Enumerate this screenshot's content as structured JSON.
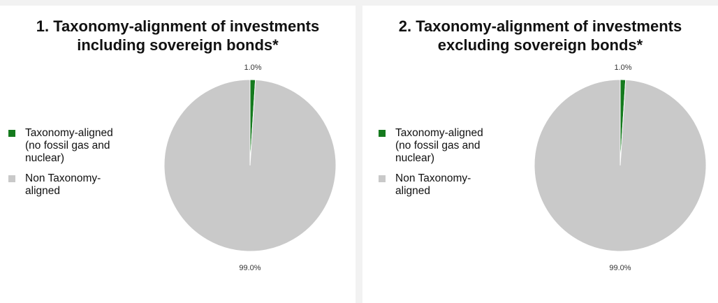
{
  "colors": {
    "aligned": "#157a1e",
    "non_aligned": "#c9c9c9"
  },
  "chart_data": [
    {
      "type": "pie",
      "title_lines": [
        "1. Taxonomy-alignment of investments",
        "including sovereign bonds*"
      ],
      "legend_position": "left",
      "slices": [
        {
          "label": "Taxonomy-aligned (no fossil gas and nuclear)",
          "legend_lines": [
            "Taxonomy-aligned",
            "(no fossil gas and",
            "nuclear)"
          ],
          "value": 1.0,
          "display": "1.0%",
          "color": "#157a1e"
        },
        {
          "label": "Non Taxonomy-aligned",
          "legend_lines": [
            "Non Taxonomy-",
            "aligned"
          ],
          "value": 99.0,
          "display": "99.0%",
          "color": "#c9c9c9"
        }
      ]
    },
    {
      "type": "pie",
      "title_lines": [
        "2. Taxonomy-alignment of investments",
        "excluding sovereign bonds*"
      ],
      "legend_position": "left",
      "slices": [
        {
          "label": "Taxonomy-aligned (no fossil gas and nuclear)",
          "legend_lines": [
            "Taxonomy-aligned",
            "(no fossil gas and",
            "nuclear)"
          ],
          "value": 1.0,
          "display": "1.0%",
          "color": "#157a1e"
        },
        {
          "label": "Non Taxonomy-aligned",
          "legend_lines": [
            "Non Taxonomy-",
            "aligned"
          ],
          "value": 99.0,
          "display": "99.0%",
          "color": "#c9c9c9"
        }
      ]
    }
  ]
}
